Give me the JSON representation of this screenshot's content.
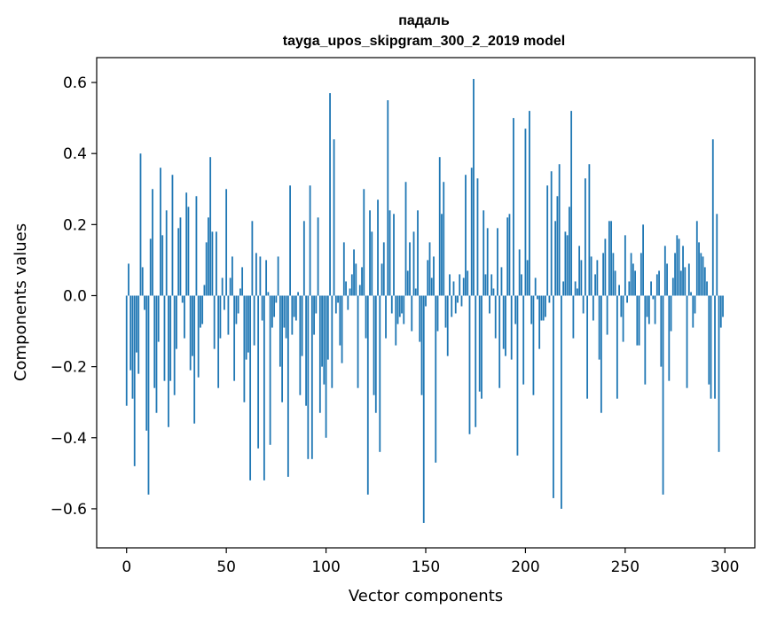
{
  "chart_data": {
    "type": "bar",
    "title": "падаль",
    "subtitle": "tayga_upos_skipgram_300_2_2019 model",
    "xlabel": "Vector components",
    "ylabel": "Components values",
    "xlim": [
      -15,
      315
    ],
    "ylim": [
      -0.71,
      0.67
    ],
    "x_ticks": [
      0,
      50,
      100,
      150,
      200,
      250,
      300
    ],
    "x_tick_labels": [
      "0",
      "50",
      "100",
      "150",
      "200",
      "250",
      "300"
    ],
    "y_ticks": [
      -0.6,
      -0.4,
      -0.2,
      0.0,
      0.2,
      0.4,
      0.6
    ],
    "y_tick_labels": [
      "−0.6",
      "−0.4",
      "−0.2",
      "0.0",
      "0.2",
      "0.4",
      "0.6"
    ],
    "bar_color": "#1f77b4",
    "grid": false,
    "values": [
      -0.31,
      0.09,
      -0.21,
      -0.29,
      -0.48,
      -0.16,
      -0.22,
      0.4,
      0.08,
      -0.04,
      -0.38,
      -0.56,
      0.16,
      0.3,
      -0.26,
      -0.33,
      -0.13,
      0.36,
      0.17,
      -0.24,
      0.24,
      -0.37,
      -0.24,
      0.34,
      -0.28,
      -0.15,
      0.19,
      0.22,
      -0.02,
      -0.12,
      0.29,
      0.25,
      -0.21,
      -0.17,
      -0.36,
      0.28,
      -0.23,
      -0.09,
      -0.08,
      0.03,
      0.15,
      0.22,
      0.39,
      0.18,
      -0.15,
      0.18,
      -0.26,
      -0.12,
      0.05,
      -0.04,
      0.3,
      -0.11,
      0.05,
      0.11,
      -0.24,
      -0.08,
      -0.05,
      0.02,
      0.08,
      -0.3,
      -0.18,
      -0.16,
      -0.52,
      0.21,
      -0.14,
      0.12,
      -0.43,
      0.11,
      -0.07,
      -0.52,
      0.1,
      0.01,
      -0.42,
      -0.09,
      -0.06,
      -0.02,
      0.11,
      -0.2,
      -0.3,
      -0.09,
      -0.12,
      -0.51,
      0.31,
      -0.11,
      -0.06,
      -0.07,
      0.01,
      -0.28,
      -0.17,
      0.21,
      -0.31,
      -0.46,
      0.31,
      -0.46,
      -0.11,
      -0.05,
      0.22,
      -0.33,
      -0.2,
      -0.25,
      -0.4,
      -0.18,
      0.57,
      -0.26,
      0.44,
      -0.05,
      -0.02,
      -0.14,
      -0.19,
      0.15,
      0.04,
      -0.04,
      0.02,
      0.06,
      0.13,
      0.09,
      -0.26,
      0.03,
      0.08,
      0.3,
      -0.12,
      -0.56,
      0.24,
      0.18,
      -0.28,
      -0.33,
      0.27,
      -0.44,
      0.09,
      0.15,
      -0.12,
      0.55,
      0.24,
      -0.05,
      0.23,
      -0.14,
      -0.08,
      -0.06,
      -0.05,
      -0.08,
      0.32,
      0.07,
      0.15,
      -0.1,
      0.18,
      0.02,
      0.24,
      -0.13,
      -0.28,
      -0.64,
      -0.03,
      0.1,
      0.15,
      0.05,
      0.11,
      -0.47,
      -0.1,
      0.39,
      0.23,
      0.32,
      -0.09,
      -0.17,
      0.06,
      -0.06,
      0.04,
      -0.05,
      -0.02,
      0.06,
      -0.03,
      0.05,
      0.34,
      0.07,
      -0.39,
      0.36,
      0.61,
      -0.37,
      0.33,
      -0.27,
      -0.29,
      0.24,
      0.06,
      0.19,
      -0.05,
      0.06,
      0.02,
      -0.12,
      0.19,
      -0.26,
      0.08,
      -0.15,
      -0.17,
      0.22,
      0.23,
      -0.18,
      0.5,
      -0.08,
      -0.45,
      0.13,
      0.06,
      -0.25,
      0.47,
      0.1,
      0.52,
      -0.08,
      -0.28,
      0.05,
      -0.01,
      -0.15,
      -0.07,
      -0.07,
      -0.06,
      0.31,
      -0.02,
      0.35,
      -0.57,
      0.21,
      0.28,
      0.37,
      -0.6,
      0.04,
      0.18,
      0.17,
      0.25,
      0.52,
      -0.12,
      0.04,
      0.02,
      0.14,
      0.1,
      -0.05,
      0.33,
      -0.29,
      0.37,
      0.11,
      -0.07,
      0.06,
      0.1,
      -0.18,
      -0.33,
      0.12,
      0.16,
      -0.11,
      0.21,
      0.21,
      0.12,
      0.07,
      -0.29,
      0.03,
      -0.06,
      -0.13,
      0.17,
      -0.02,
      0.04,
      0.12,
      0.09,
      0.07,
      -0.14,
      -0.14,
      0.12,
      0.2,
      -0.25,
      -0.06,
      -0.08,
      0.04,
      -0.01,
      -0.08,
      0.06,
      0.07,
      -0.2,
      -0.56,
      0.14,
      0.09,
      -0.24,
      -0.1,
      0.05,
      0.12,
      0.17,
      0.16,
      0.07,
      0.14,
      0.08,
      -0.26,
      0.09,
      0.01,
      -0.09,
      -0.05,
      0.21,
      0.15,
      0.12,
      0.11,
      0.08,
      0.04,
      -0.25,
      -0.29,
      0.44,
      -0.29,
      0.23,
      -0.44,
      -0.09,
      -0.06
    ]
  }
}
